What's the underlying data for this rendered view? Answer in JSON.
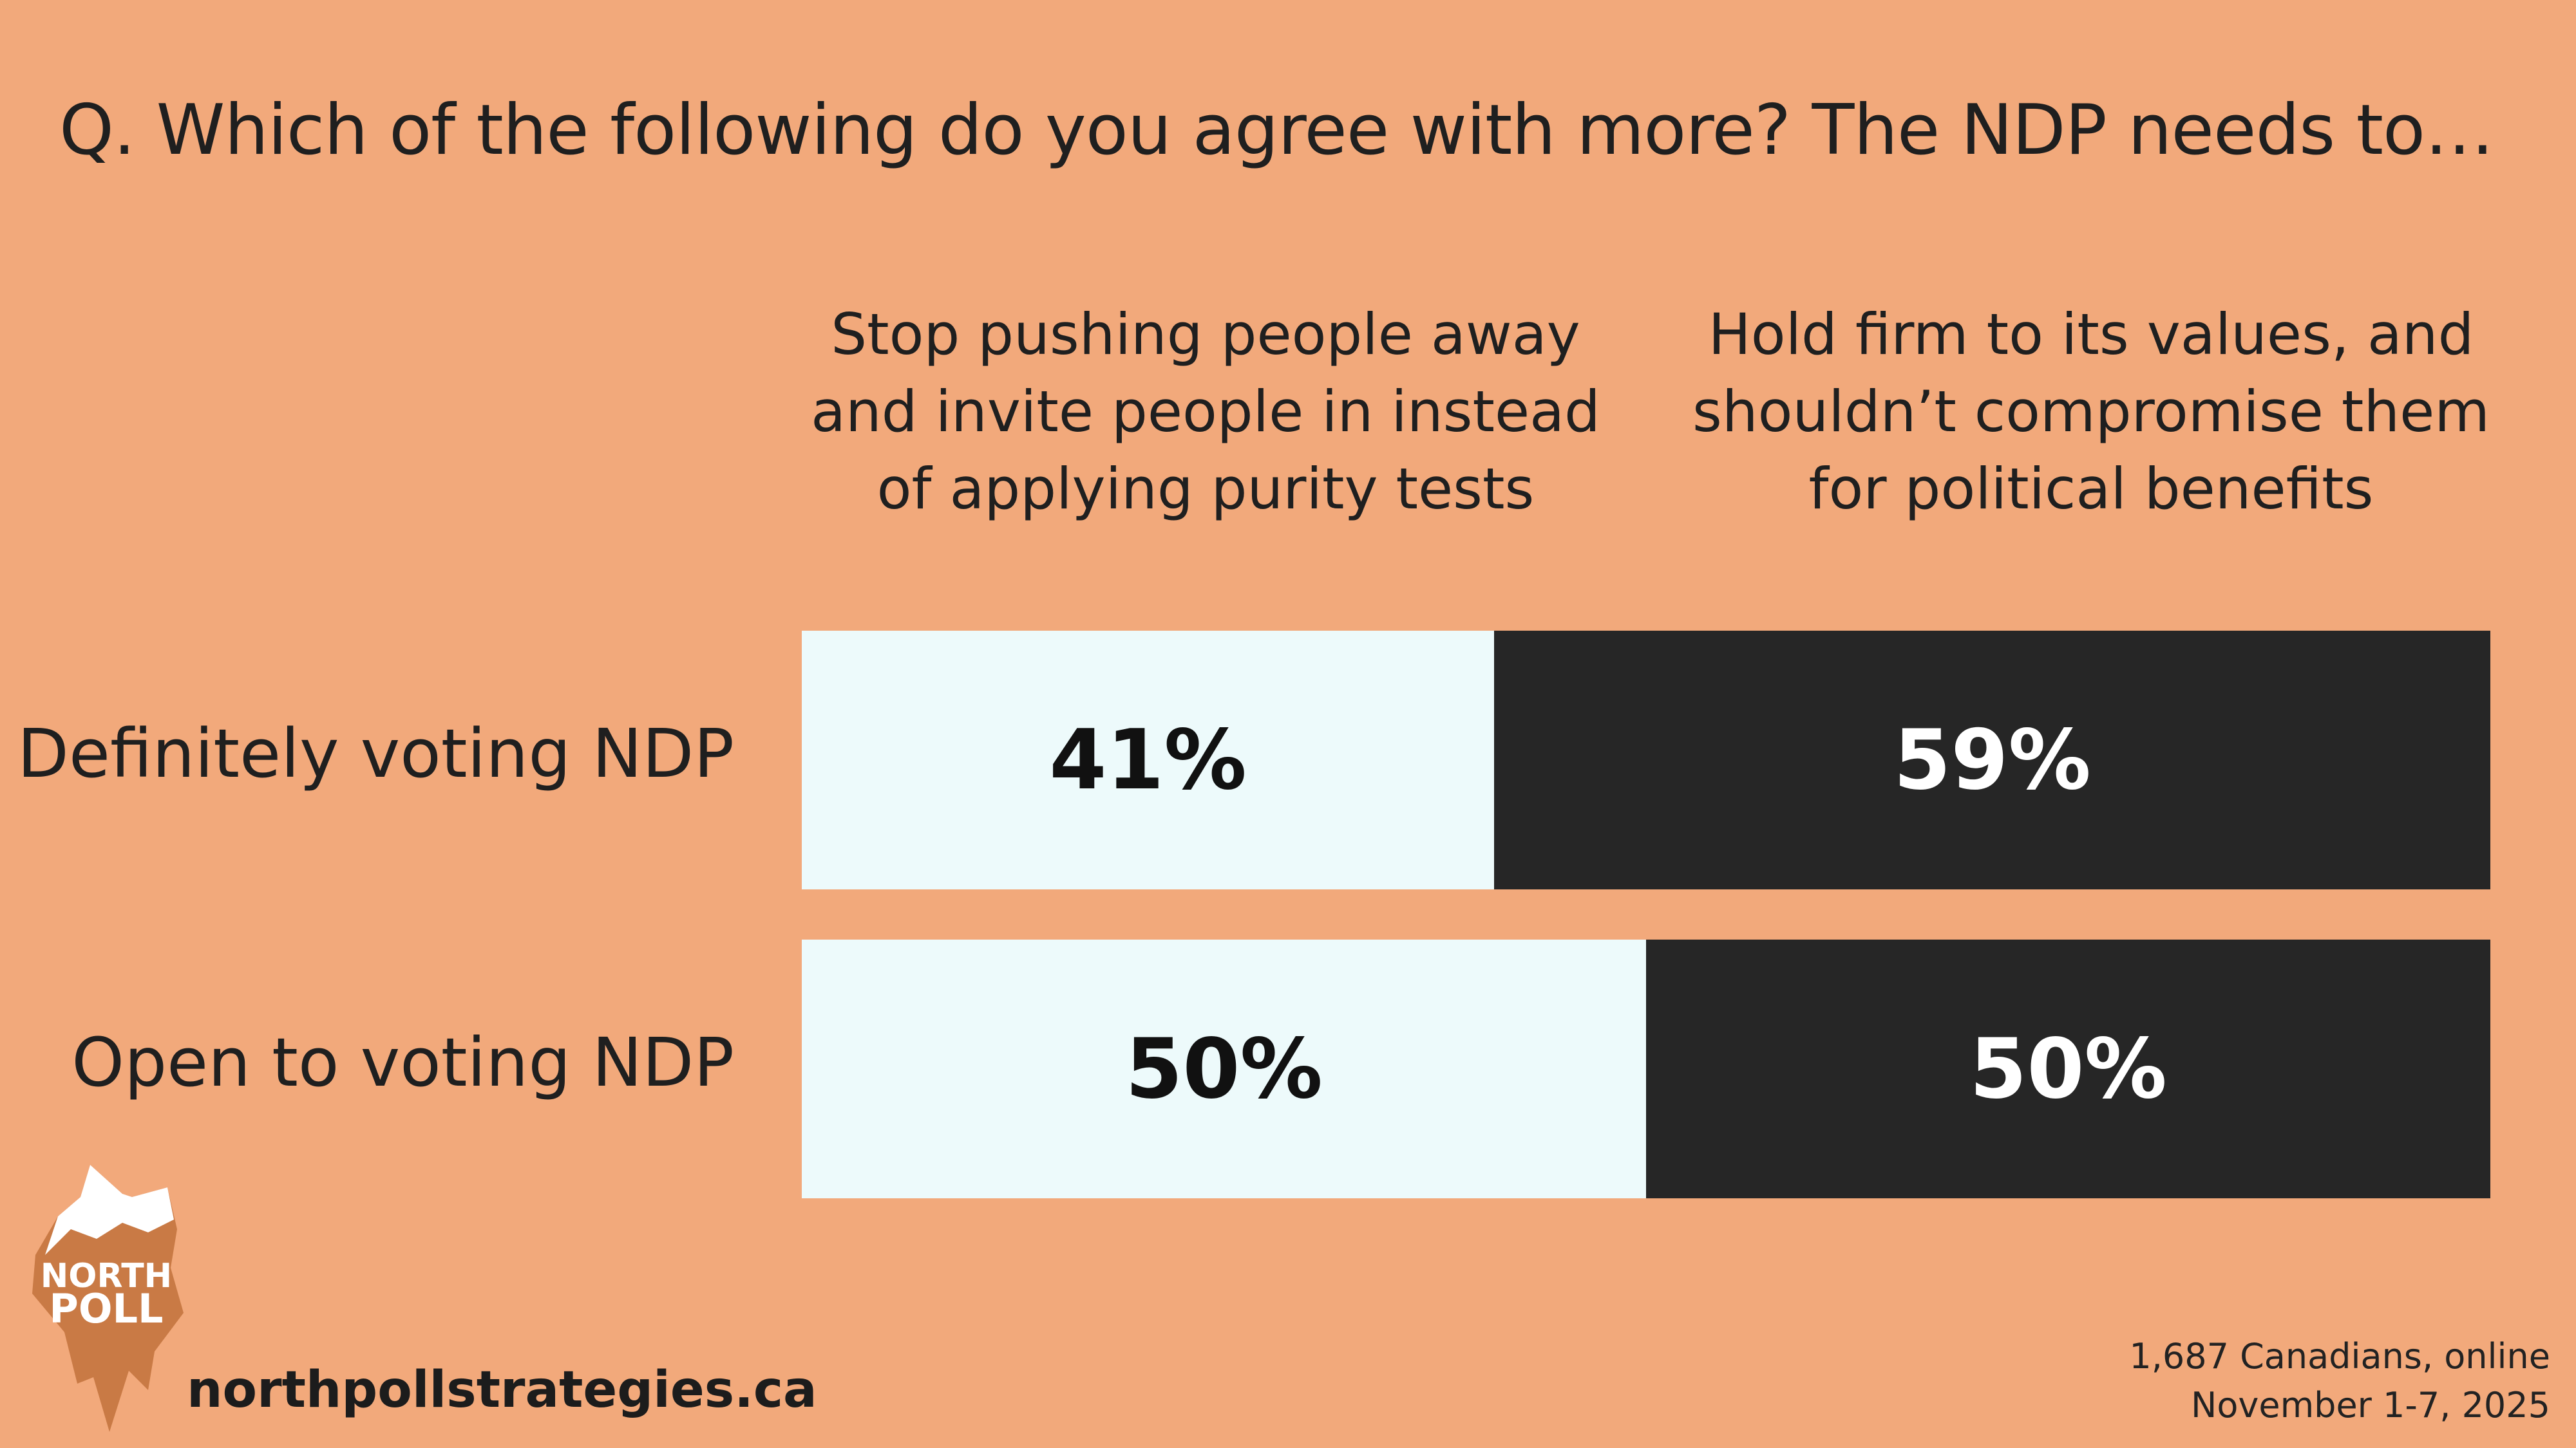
{
  "title": "Q. Which of the following do you agree with more? The NDP needs to…",
  "colors": {
    "background": "#F2A97B",
    "option_a": "#EDFAFB",
    "option_b": "#262626"
  },
  "chart_data": {
    "type": "bar",
    "orientation": "horizontal",
    "stacked": true,
    "categories": [
      "Definitely voting NDP",
      "Open to voting NDP"
    ],
    "series": [
      {
        "name": "Stop pushing people away and invite people in instead of applying purity tests",
        "values": [
          41,
          50
        ],
        "labels": [
          "41%",
          "50%"
        ]
      },
      {
        "name": "Hold firm to its values, and shouldn’t compromise them for political benefits",
        "values": [
          59,
          50
        ],
        "labels": [
          "59%",
          "50%"
        ]
      }
    ],
    "ylim": [
      0,
      100
    ]
  },
  "column_headers": {
    "left_lines": [
      "Stop pushing people away",
      "and invite people in instead",
      "of applying purity tests"
    ],
    "right_lines": [
      "Hold firm to its values, and",
      "shouldn’t compromise them",
      "for political benefits"
    ]
  },
  "logo": {
    "line1": "NORTH",
    "line2": "POLL"
  },
  "website": "northpollstrategies.ca",
  "source": {
    "line1": "1,687 Canadians, online",
    "line2": "November 1-7, 2025"
  }
}
